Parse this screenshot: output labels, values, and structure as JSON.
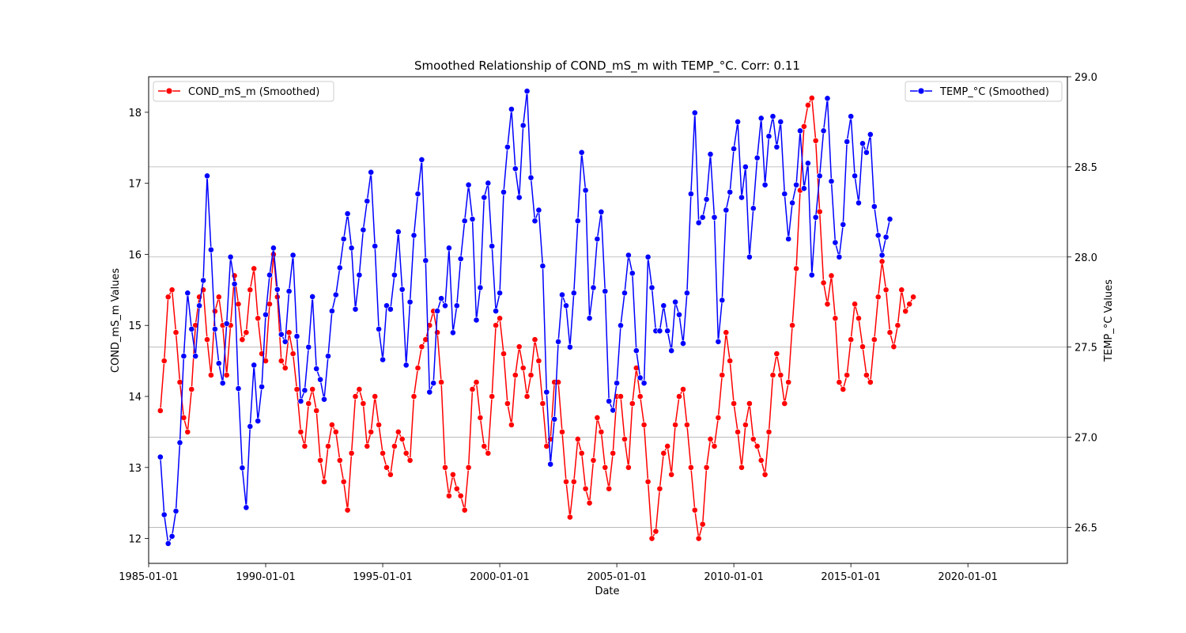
{
  "chart_data": {
    "type": "line",
    "title": "Smoothed Relationship of COND_mS_m with TEMP_°C. Corr: 0.11",
    "xlabel": "Date",
    "x_tick_labels": [
      "1985-01-01",
      "1990-01-01",
      "1995-01-01",
      "2000-01-01",
      "2005-01-01",
      "2010-01-01",
      "2015-01-01",
      "2020-01-01"
    ],
    "x_range": [
      "1985-01-01",
      "2024-04-01"
    ],
    "grid": true,
    "left_axis": {
      "label": "COND_mS_m Values",
      "range": [
        11.65,
        18.5
      ],
      "ticks": [
        12,
        13,
        14,
        15,
        16,
        17,
        18
      ],
      "tick_labels": [
        "12",
        "13",
        "14",
        "15",
        "16",
        "17",
        "18"
      ]
    },
    "right_axis": {
      "label": "TEMP_°C Values",
      "range": [
        26.3,
        29.0
      ],
      "ticks": [
        26.5,
        27.0,
        27.5,
        28.0,
        28.5,
        29.0
      ],
      "tick_labels": [
        "26.5",
        "27.0",
        "27.5",
        "28.0",
        "28.5",
        "29.0"
      ]
    },
    "series": [
      {
        "name": "COND_mS_m (Smoothed)",
        "axis": "left",
        "color": "#ff0000",
        "legend_position": "upper-left",
        "x_start": "1985-07",
        "x_step_months": 2,
        "values": [
          13.8,
          14.5,
          15.4,
          15.5,
          14.9,
          14.2,
          13.7,
          13.5,
          14.1,
          15.0,
          15.4,
          15.5,
          14.8,
          14.3,
          15.2,
          15.4,
          15.0,
          14.3,
          15.0,
          15.7,
          15.3,
          14.8,
          14.9,
          15.5,
          15.8,
          15.1,
          14.6,
          14.5,
          15.3,
          16.0,
          15.4,
          14.5,
          14.4,
          14.9,
          14.6,
          14.1,
          13.5,
          13.3,
          13.9,
          14.1,
          13.8,
          13.1,
          12.8,
          13.3,
          13.6,
          13.5,
          13.1,
          12.8,
          12.4,
          13.2,
          14.0,
          14.1,
          13.9,
          13.3,
          13.5,
          14.0,
          13.6,
          13.2,
          13.0,
          12.9,
          13.3,
          13.5,
          13.4,
          13.2,
          13.1,
          14.0,
          14.4,
          14.7,
          14.8,
          15.0,
          15.2,
          14.9,
          14.2,
          13.0,
          12.6,
          12.9,
          12.7,
          12.6,
          12.4,
          13.0,
          14.1,
          14.2,
          13.7,
          13.3,
          13.2,
          14.0,
          15.0,
          15.1,
          14.6,
          13.9,
          13.6,
          14.3,
          14.7,
          14.4,
          14.0,
          14.3,
          14.8,
          14.5,
          13.9,
          13.3,
          13.4,
          14.2,
          14.2,
          13.5,
          12.8,
          12.3,
          12.8,
          13.4,
          13.2,
          12.7,
          12.5,
          13.1,
          13.7,
          13.5,
          13.0,
          12.7,
          13.2,
          14.0,
          14.0,
          13.4,
          13.0,
          13.9,
          14.4,
          14.0,
          13.6,
          12.8,
          12.0,
          12.1,
          12.7,
          13.2,
          13.3,
          12.9,
          13.6,
          14.0,
          14.1,
          13.6,
          13.0,
          12.4,
          12.0,
          12.2,
          13.0,
          13.4,
          13.3,
          13.7,
          14.3,
          14.9,
          14.5,
          13.9,
          13.5,
          13.0,
          13.6,
          13.9,
          13.4,
          13.3,
          13.1,
          12.9,
          13.5,
          14.3,
          14.6,
          14.3,
          13.9,
          14.2,
          15.0,
          15.8,
          16.9,
          17.8,
          18.1,
          18.2,
          17.6,
          16.6,
          15.6,
          15.3,
          15.7,
          15.1,
          14.2,
          14.1,
          14.3,
          14.8,
          15.3,
          15.1,
          14.7,
          14.3,
          14.2,
          14.8,
          15.4,
          15.9,
          15.5,
          14.9,
          14.7,
          15.0,
          15.5,
          15.2,
          15.3,
          15.4
        ]
      },
      {
        "name": "TEMP_°C (Smoothed)",
        "axis": "right",
        "color": "#0000ff",
        "legend_position": "upper-right",
        "x_start": "1985-07",
        "x_step_months": 2,
        "values": [
          26.89,
          26.57,
          26.41,
          26.45,
          26.59,
          26.97,
          27.45,
          27.8,
          27.6,
          27.45,
          27.73,
          27.87,
          28.45,
          28.04,
          27.6,
          27.41,
          27.3,
          27.63,
          28.0,
          27.85,
          27.27,
          26.83,
          26.61,
          27.06,
          27.4,
          27.09,
          27.28,
          27.68,
          27.9,
          28.05,
          27.82,
          27.57,
          27.53,
          27.81,
          28.01,
          27.56,
          27.2,
          27.26,
          27.5,
          27.78,
          27.38,
          27.32,
          27.21,
          27.45,
          27.7,
          27.79,
          27.94,
          28.1,
          28.24,
          28.05,
          27.71,
          27.9,
          28.15,
          28.31,
          28.47,
          28.06,
          27.6,
          27.43,
          27.73,
          27.71,
          27.9,
          28.14,
          27.82,
          27.4,
          27.75,
          28.12,
          28.35,
          28.54,
          27.98,
          27.25,
          27.3,
          27.7,
          27.77,
          27.73,
          28.05,
          27.58,
          27.73,
          27.99,
          28.2,
          28.4,
          28.21,
          27.65,
          27.83,
          28.33,
          28.41,
          28.06,
          27.7,
          27.8,
          28.36,
          28.61,
          28.82,
          28.49,
          28.33,
          28.73,
          28.92,
          28.44,
          28.2,
          28.26,
          27.95,
          27.25,
          26.85,
          27.1,
          27.53,
          27.79,
          27.73,
          27.5,
          27.8,
          28.2,
          28.58,
          28.37,
          27.66,
          27.83,
          28.1,
          28.25,
          27.81,
          27.2,
          27.15,
          27.3,
          27.62,
          27.8,
          28.01,
          27.91,
          27.48,
          27.33,
          27.3,
          28.0,
          27.83,
          27.59,
          27.59,
          27.73,
          27.59,
          27.48,
          27.75,
          27.68,
          27.52,
          27.8,
          28.35,
          28.8,
          28.19,
          28.22,
          28.32,
          28.57,
          28.22,
          27.53,
          27.76,
          28.26,
          28.36,
          28.6,
          28.75,
          28.33,
          28.5,
          28.0,
          28.27,
          28.55,
          28.77,
          28.4,
          28.67,
          28.78,
          28.61,
          28.75,
          28.35,
          28.1,
          28.3,
          28.4,
          28.7,
          28.38,
          28.52,
          27.9,
          28.22,
          28.45,
          28.7,
          28.88,
          28.42,
          28.08,
          28.0,
          28.18,
          28.64,
          28.78,
          28.45,
          28.3,
          28.63,
          28.58,
          28.68,
          28.28,
          28.12,
          28.01,
          28.11,
          28.21
        ]
      }
    ]
  }
}
